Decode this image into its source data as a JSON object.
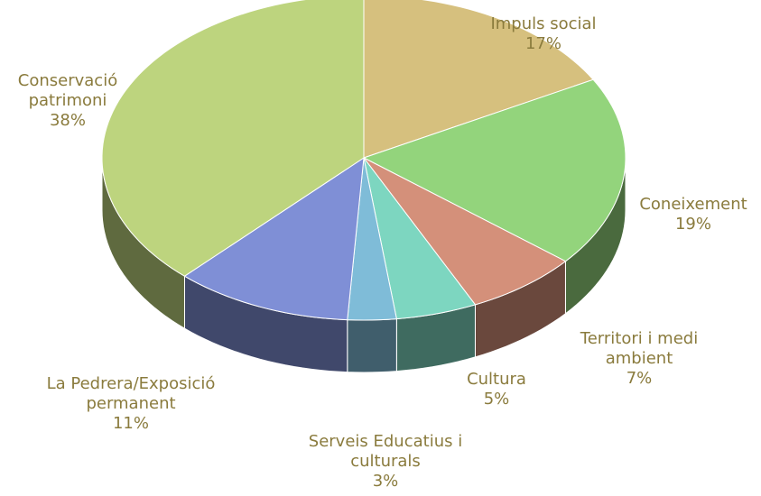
{
  "chart_data": {
    "type": "pie3d",
    "categories": [
      "Impuls social",
      "Coneixement",
      "Territori i medi ambient",
      "Cultura",
      "Serveis Educatius i culturals",
      "La Pedrera/Exposició permanent",
      "Conservació patrimoni"
    ],
    "values": [
      17,
      19,
      7,
      5,
      3,
      11,
      38
    ],
    "value_labels": [
      "17%",
      "19%",
      "7%",
      "5%",
      "3%",
      "11%",
      "38%"
    ],
    "colors": [
      "#d6c07e",
      "#93d47c",
      "#d4907a",
      "#7dd6c0",
      "#7fbcd8",
      "#7f8fd6",
      "#bdd47e"
    ]
  }
}
